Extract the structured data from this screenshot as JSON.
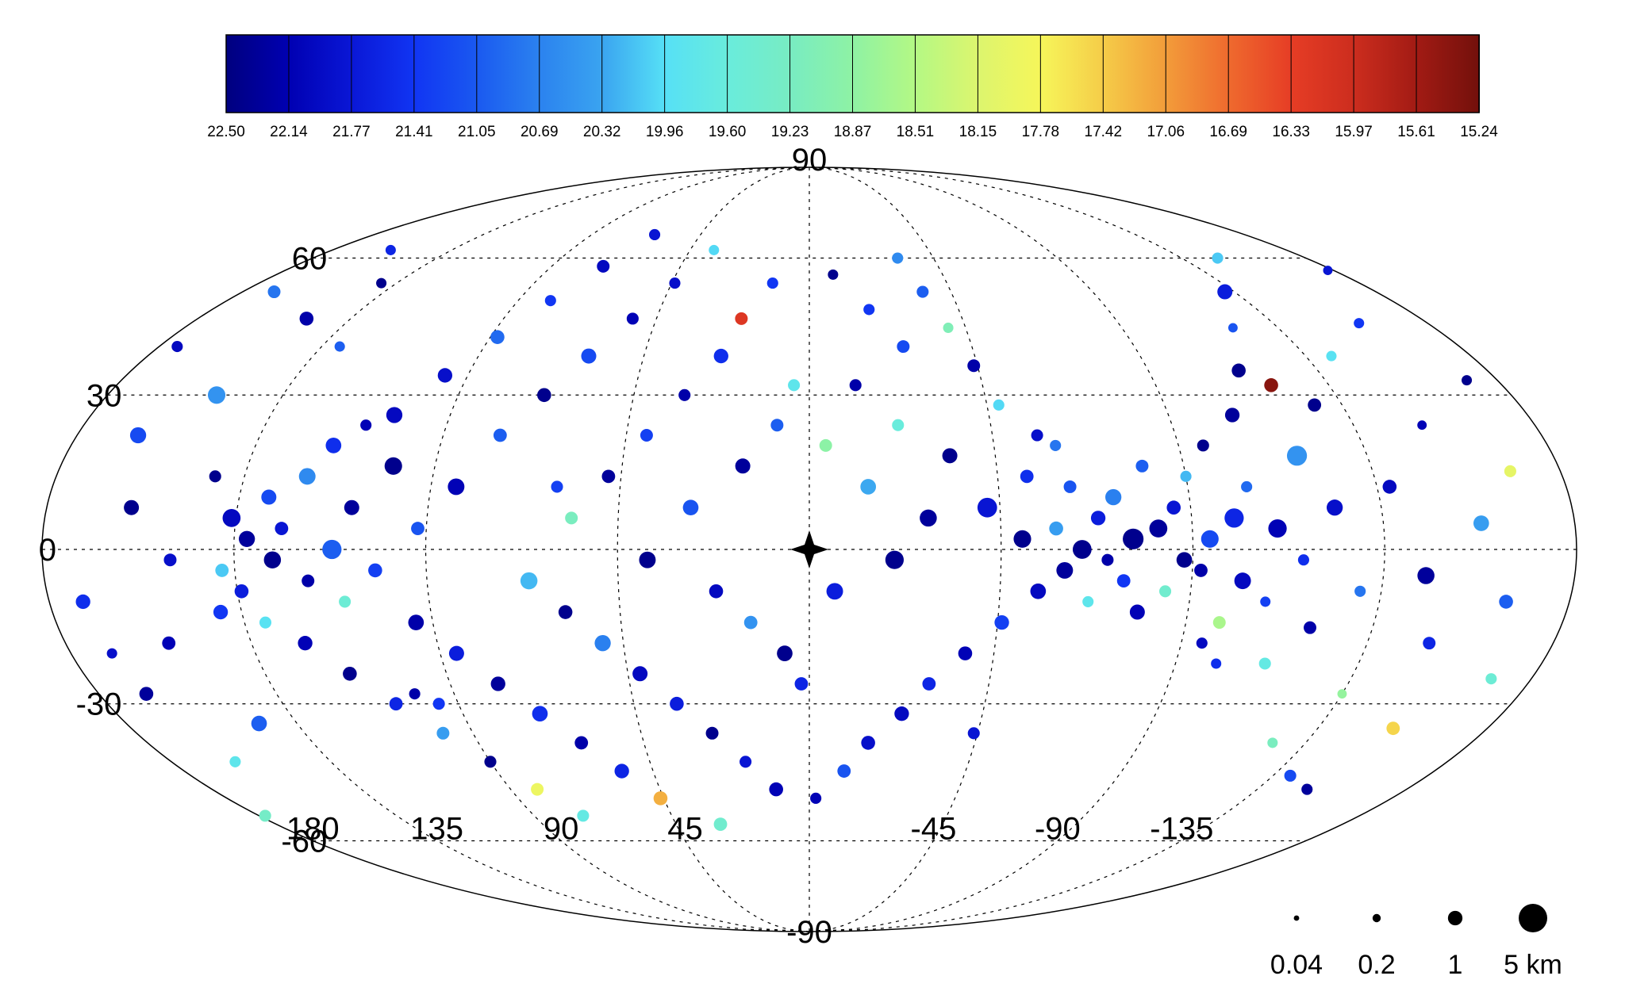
{
  "chart_data": {
    "type": "scatter",
    "projection": "mollweide",
    "title": "",
    "xlabel": "",
    "ylabel": "",
    "grid": true,
    "center_marker": "four-point-star",
    "colorbar": {
      "placement": "top",
      "tick_labels": [
        "22.50",
        "22.14",
        "21.77",
        "21.41",
        "21.05",
        "20.69",
        "20.32",
        "19.96",
        "19.60",
        "19.23",
        "18.87",
        "18.51",
        "18.15",
        "17.78",
        "17.42",
        "17.06",
        "16.69",
        "16.33",
        "15.97",
        "15.61",
        "15.24"
      ],
      "colors": [
        "#00007f",
        "#0000b2",
        "#0a17d6",
        "#1135f3",
        "#1a59f0",
        "#2b82ef",
        "#3aa4f0",
        "#56e0f6",
        "#69ecdc",
        "#78ecc2",
        "#8ef2a4",
        "#b4f884",
        "#dcf56e",
        "#f6f65a",
        "#f5cc48",
        "#f29c3a",
        "#ef6a2e",
        "#e63d25",
        "#cc2d1e",
        "#a21b14",
        "#73100b"
      ]
    },
    "latitude_ticks": [
      {
        "value": 90,
        "label": "90"
      },
      {
        "value": 60,
        "label": "60"
      },
      {
        "value": 30,
        "label": "30"
      },
      {
        "value": 0,
        "label": "0"
      },
      {
        "value": -30,
        "label": "-30"
      },
      {
        "value": -60,
        "label": "-60"
      },
      {
        "value": -90,
        "label": "-90"
      }
    ],
    "longitude_ticks": [
      {
        "value": 45,
        "label": "45"
      },
      {
        "value": 90,
        "label": "90"
      },
      {
        "value": 135,
        "label": "135"
      },
      {
        "value": 180,
        "label": "180"
      },
      {
        "value": -135,
        "label": "-135"
      },
      {
        "value": -90,
        "label": "-90"
      },
      {
        "value": -45,
        "label": "-45"
      }
    ],
    "size_legend": {
      "placement": "bottom-right",
      "entries": [
        {
          "value": 0.04,
          "label": "0.04"
        },
        {
          "value": 0.2,
          "label": "0.2"
        },
        {
          "value": 1,
          "label": "1"
        },
        {
          "value": 5,
          "label": "5 km"
        }
      ]
    },
    "series_columns": [
      "longitude_deg",
      "latitude_deg",
      "magnitude",
      "diameter_km"
    ],
    "points": [
      [
        -178,
        57,
        21.8,
        0.3
      ],
      [
        -172,
        33,
        22.4,
        0.4
      ],
      [
        -170,
        -25,
        19.5,
        0.5
      ],
      [
        -168,
        15,
        18.0,
        0.6
      ],
      [
        -165,
        -10,
        21.0,
        0.9
      ],
      [
        -160,
        45,
        21.4,
        0.4
      ],
      [
        -158,
        5,
        20.4,
        1.2
      ],
      [
        -155,
        -35,
        17.5,
        0.8
      ],
      [
        -152,
        24,
        22.1,
        0.3
      ],
      [
        -150,
        -18,
        21.6,
        0.7
      ],
      [
        -148,
        60,
        20.1,
        0.5
      ],
      [
        -145,
        -5,
        22.3,
        1.5
      ],
      [
        -142,
        38,
        19.9,
        0.4
      ],
      [
        -140,
        -45,
        21.2,
        0.6
      ],
      [
        -138,
        12,
        22.0,
        0.9
      ],
      [
        -135,
        -28,
        18.8,
        0.3
      ],
      [
        -132,
        52,
        21.7,
        1.1
      ],
      [
        -130,
        -8,
        20.8,
        0.5
      ],
      [
        -128,
        28,
        22.4,
        0.8
      ],
      [
        -126,
        -38,
        19.2,
        0.4
      ],
      [
        -124,
        8,
        21.9,
        1.3
      ],
      [
        -122,
        44,
        21.1,
        0.3
      ],
      [
        -120,
        -15,
        22.2,
        0.7
      ],
      [
        -118,
        18,
        20.5,
        2.2
      ],
      [
        -116,
        -2,
        21.5,
        0.5
      ],
      [
        -114,
        35,
        22.4,
        0.9
      ],
      [
        -112,
        -22,
        19.7,
        0.6
      ],
      [
        -110,
        4,
        22.1,
        1.8
      ],
      [
        -108,
        -10,
        21.3,
        0.4
      ],
      [
        -106,
        26,
        22.3,
        1.0
      ],
      [
        -104,
        12,
        20.9,
        0.5
      ],
      [
        -102,
        -6,
        22.0,
        1.4
      ],
      [
        -100,
        6,
        21.6,
        2.0
      ],
      [
        -98,
        -14,
        18.6,
        0.7
      ],
      [
        -96,
        20,
        22.4,
        0.6
      ],
      [
        -94,
        2,
        21.2,
        1.6
      ],
      [
        -92,
        -4,
        22.2,
        0.8
      ],
      [
        -90,
        14,
        20.2,
        0.5
      ],
      [
        -88,
        -2,
        22.4,
        1.2
      ],
      [
        -86,
        8,
        21.8,
        0.9
      ],
      [
        -84,
        -8,
        19.4,
        0.6
      ],
      [
        -82,
        4,
        22.3,
        1.7
      ],
      [
        -80,
        16,
        21.0,
        0.7
      ],
      [
        -78,
        -12,
        22.1,
        1.1
      ],
      [
        -76,
        2,
        22.4,
        2.4
      ],
      [
        -74,
        -6,
        21.4,
        0.8
      ],
      [
        -72,
        10,
        20.7,
        1.3
      ],
      [
        -70,
        -2,
        22.2,
        0.6
      ],
      [
        -68,
        6,
        21.7,
        1.0
      ],
      [
        -66,
        -10,
        19.8,
        0.5
      ],
      [
        -64,
        0,
        22.4,
        1.9
      ],
      [
        -62,
        12,
        21.1,
        0.7
      ],
      [
        -60,
        -4,
        22.3,
        1.4
      ],
      [
        -58,
        4,
        20.4,
        0.9
      ],
      [
        -56,
        22,
        21.9,
        0.6
      ],
      [
        -54,
        -8,
        22.0,
        1.2
      ],
      [
        -52,
        14,
        21.5,
        0.8
      ],
      [
        -50,
        2,
        22.4,
        1.6
      ],
      [
        -48,
        28,
        20.0,
        0.5
      ],
      [
        -46,
        -14,
        21.3,
        1.0
      ],
      [
        -44,
        36,
        22.2,
        0.7
      ],
      [
        -42,
        8,
        21.8,
        2.1
      ],
      [
        -40,
        44,
        19.1,
        0.4
      ],
      [
        -38,
        -20,
        22.1,
        0.9
      ],
      [
        -36,
        52,
        21.0,
        0.6
      ],
      [
        -34,
        18,
        22.4,
        1.1
      ],
      [
        -32,
        60,
        20.6,
        0.5
      ],
      [
        -30,
        -26,
        21.6,
        0.8
      ],
      [
        -28,
        6,
        22.3,
        1.5
      ],
      [
        -26,
        40,
        21.2,
        0.7
      ],
      [
        -24,
        -32,
        22.0,
        1.0
      ],
      [
        -22,
        24,
        19.6,
        0.6
      ],
      [
        -20,
        -2,
        22.4,
        1.8
      ],
      [
        -18,
        48,
        21.4,
        0.5
      ],
      [
        -16,
        -38,
        21.9,
        0.9
      ],
      [
        -14,
        12,
        20.3,
        1.2
      ],
      [
        -12,
        32,
        22.2,
        0.6
      ],
      [
        -10,
        -44,
        21.1,
        0.8
      ],
      [
        -8,
        56,
        22.4,
        0.4
      ],
      [
        -6,
        -8,
        21.7,
        1.4
      ],
      [
        -4,
        20,
        18.9,
        0.7
      ],
      [
        -2,
        -50,
        22.1,
        0.5
      ],
      [
        178,
        -54,
        19.3,
        0.6
      ],
      [
        175,
        40,
        22.0,
        0.5
      ],
      [
        172,
        -10,
        21.5,
        1.0
      ],
      [
        170,
        52,
        20.8,
        0.7
      ],
      [
        168,
        -28,
        22.3,
        0.9
      ],
      [
        165,
        22,
        21.2,
        1.3
      ],
      [
        162,
        -42,
        19.8,
        0.5
      ],
      [
        160,
        8,
        22.4,
        1.1
      ],
      [
        158,
        62,
        21.6,
        0.4
      ],
      [
        155,
        -18,
        22.1,
        0.8
      ],
      [
        152,
        30,
        20.5,
        1.6
      ],
      [
        150,
        -2,
        21.9,
        0.7
      ],
      [
        148,
        46,
        22.2,
        0.9
      ],
      [
        145,
        -34,
        21.0,
        1.2
      ],
      [
        142,
        14,
        22.4,
        0.6
      ],
      [
        140,
        -12,
        21.4,
        1.0
      ],
      [
        138,
        -4,
        20.1,
        0.8
      ],
      [
        136,
        6,
        22.0,
        1.7
      ],
      [
        134,
        -8,
        21.7,
        0.9
      ],
      [
        132,
        2,
        22.3,
        1.3
      ],
      [
        130,
        -14,
        19.9,
        0.6
      ],
      [
        128,
        10,
        21.2,
        1.1
      ],
      [
        126,
        -2,
        22.4,
        1.5
      ],
      [
        124,
        4,
        21.8,
        0.8
      ],
      [
        122,
        -18,
        22.1,
        1.0
      ],
      [
        120,
        14,
        20.6,
        1.4
      ],
      [
        118,
        -6,
        22.2,
        0.7
      ],
      [
        116,
        20,
        21.5,
        1.2
      ],
      [
        114,
        -24,
        22.4,
        0.9
      ],
      [
        112,
        0,
        21.0,
        2.0
      ],
      [
        110,
        -10,
        19.5,
        0.6
      ],
      [
        108,
        8,
        22.3,
        1.1
      ],
      [
        106,
        -30,
        21.6,
        0.8
      ],
      [
        104,
        26,
        22.0,
        1.3
      ],
      [
        102,
        -4,
        21.3,
        0.9
      ],
      [
        100,
        16,
        22.4,
        1.6
      ],
      [
        98,
        -36,
        20.4,
        0.7
      ],
      [
        96,
        34,
        21.9,
        1.0
      ],
      [
        94,
        -14,
        22.2,
        1.2
      ],
      [
        92,
        4,
        21.1,
        0.8
      ],
      [
        90,
        -42,
        22.4,
        0.6
      ],
      [
        88,
        42,
        20.9,
        0.9
      ],
      [
        86,
        -20,
        21.7,
        1.1
      ],
      [
        84,
        12,
        22.1,
        1.4
      ],
      [
        82,
        -48,
        17.9,
        0.7
      ],
      [
        80,
        50,
        21.4,
        0.5
      ],
      [
        78,
        -26,
        22.3,
        1.0
      ],
      [
        76,
        22,
        21.0,
        0.8
      ],
      [
        74,
        -54,
        19.7,
        0.6
      ],
      [
        72,
        58,
        22.0,
        0.7
      ],
      [
        70,
        -32,
        21.5,
        1.2
      ],
      [
        68,
        30,
        22.4,
        0.9
      ],
      [
        66,
        -6,
        20.2,
        1.5
      ],
      [
        64,
        66,
        21.8,
        0.5
      ],
      [
        62,
        -38,
        22.2,
        0.8
      ],
      [
        60,
        38,
        21.2,
        1.1
      ],
      [
        58,
        -12,
        22.4,
        0.9
      ],
      [
        56,
        6,
        19.2,
        0.7
      ],
      [
        54,
        -44,
        21.6,
        1.0
      ],
      [
        52,
        46,
        22.1,
        0.6
      ],
      [
        50,
        -18,
        20.7,
        1.3
      ],
      [
        48,
        14,
        22.3,
        0.8
      ],
      [
        46,
        -50,
        17.2,
        0.9
      ],
      [
        44,
        54,
        21.9,
        0.5
      ],
      [
        42,
        -24,
        22.0,
        1.1
      ],
      [
        40,
        22,
        21.3,
        0.7
      ],
      [
        38,
        -2,
        22.4,
        1.4
      ],
      [
        36,
        62,
        20.0,
        0.4
      ],
      [
        34,
        -30,
        21.7,
        0.9
      ],
      [
        32,
        30,
        22.2,
        0.6
      ],
      [
        30,
        -56,
        19.4,
        0.8
      ],
      [
        28,
        8,
        21.1,
        1.2
      ],
      [
        26,
        -36,
        22.4,
        0.7
      ],
      [
        24,
        38,
        21.5,
        1.0
      ],
      [
        22,
        -8,
        22.0,
        0.9
      ],
      [
        20,
        46,
        16.2,
        0.7
      ],
      [
        18,
        -42,
        21.8,
        0.6
      ],
      [
        16,
        16,
        22.3,
        1.1
      ],
      [
        14,
        -14,
        20.5,
        0.8
      ],
      [
        12,
        54,
        21.4,
        0.5
      ],
      [
        10,
        -48,
        22.1,
        0.9
      ],
      [
        8,
        24,
        21.0,
        0.7
      ],
      [
        6,
        -20,
        22.4,
        1.2
      ],
      [
        4,
        32,
        19.8,
        0.6
      ],
      [
        2,
        -26,
        21.6,
        0.8
      ],
      [
        170,
        -20,
        21.9,
        0.4
      ],
      [
        100,
        -28,
        22.2,
        0.5
      ],
      [
        95,
        -30,
        21.4,
        0.6
      ],
      [
        -95,
        -18,
        22.0,
        0.5
      ],
      [
        -100,
        -22,
        21.5,
        0.4
      ],
      [
        -120,
        32,
        15.4,
        0.9
      ],
      [
        -60,
        20,
        20.8,
        0.5
      ],
      [
        60,
        12,
        21.3,
        0.6
      ],
      [
        110,
        24,
        22.1,
        0.5
      ],
      [
        130,
        40,
        21.0,
        0.4
      ],
      [
        -150,
        -48,
        22.3,
        0.5
      ],
      [
        -44,
        -36,
        21.8,
        0.6
      ],
      [
        140,
        54,
        22.4,
        0.4
      ]
    ]
  }
}
